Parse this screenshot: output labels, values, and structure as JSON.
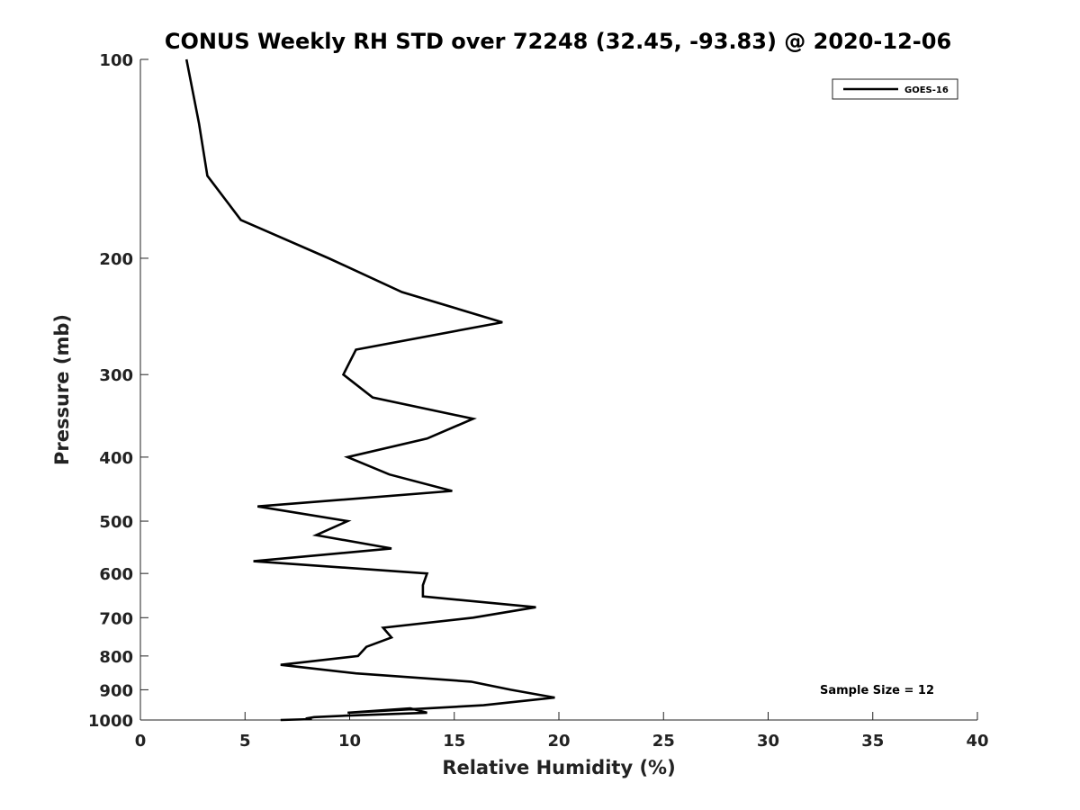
{
  "chart_data": {
    "type": "line",
    "title": "CONUS Weekly RH STD over 72248 (32.45, -93.83) @ 2020-12-06",
    "xlabel": "Relative Humidity (%)",
    "ylabel": "Pressure (mb)",
    "xlim": [
      0,
      40
    ],
    "ylim": [
      100,
      1000
    ],
    "y_scale": "log",
    "y_reversed": true,
    "x_ticks": [
      "0",
      "5",
      "10",
      "15",
      "20",
      "25",
      "30",
      "35",
      "40"
    ],
    "y_ticks": [
      "100",
      "200",
      "300",
      "400",
      "500",
      "600",
      "700",
      "800",
      "900",
      "1000"
    ],
    "grid": false,
    "legend_position": "top-right",
    "annotation": "Sample Size = 12",
    "series": [
      {
        "name": "GOES-16",
        "color": "#000000",
        "points": [
          [
            2.2,
            100
          ],
          [
            2.8,
            125
          ],
          [
            3.2,
            150
          ],
          [
            4.8,
            175
          ],
          [
            9.0,
            200
          ],
          [
            12.5,
            225
          ],
          [
            17.3,
            250
          ],
          [
            10.3,
            275
          ],
          [
            9.7,
            300
          ],
          [
            11.1,
            325
          ],
          [
            15.9,
            350
          ],
          [
            13.7,
            375
          ],
          [
            9.9,
            400
          ],
          [
            11.9,
            425
          ],
          [
            14.9,
            450
          ],
          [
            5.6,
            475
          ],
          [
            9.9,
            500
          ],
          [
            8.4,
            525
          ],
          [
            12.0,
            550
          ],
          [
            5.4,
            575
          ],
          [
            13.7,
            600
          ],
          [
            13.5,
            625
          ],
          [
            13.5,
            650
          ],
          [
            18.9,
            675
          ],
          [
            15.9,
            700
          ],
          [
            11.6,
            725
          ],
          [
            12.0,
            750
          ],
          [
            10.8,
            775
          ],
          [
            10.4,
            800
          ],
          [
            6.7,
            825
          ],
          [
            10.3,
            850
          ],
          [
            15.8,
            875
          ],
          [
            17.7,
            900
          ],
          [
            19.8,
            925
          ],
          [
            16.4,
            950
          ],
          [
            9.9,
            975
          ],
          [
            12.9,
            960
          ],
          [
            13.7,
            975
          ],
          [
            9.8,
            985
          ],
          [
            8.3,
            990
          ],
          [
            7.9,
            995
          ],
          [
            8.2,
            997
          ],
          [
            6.7,
            1000
          ]
        ]
      }
    ]
  }
}
